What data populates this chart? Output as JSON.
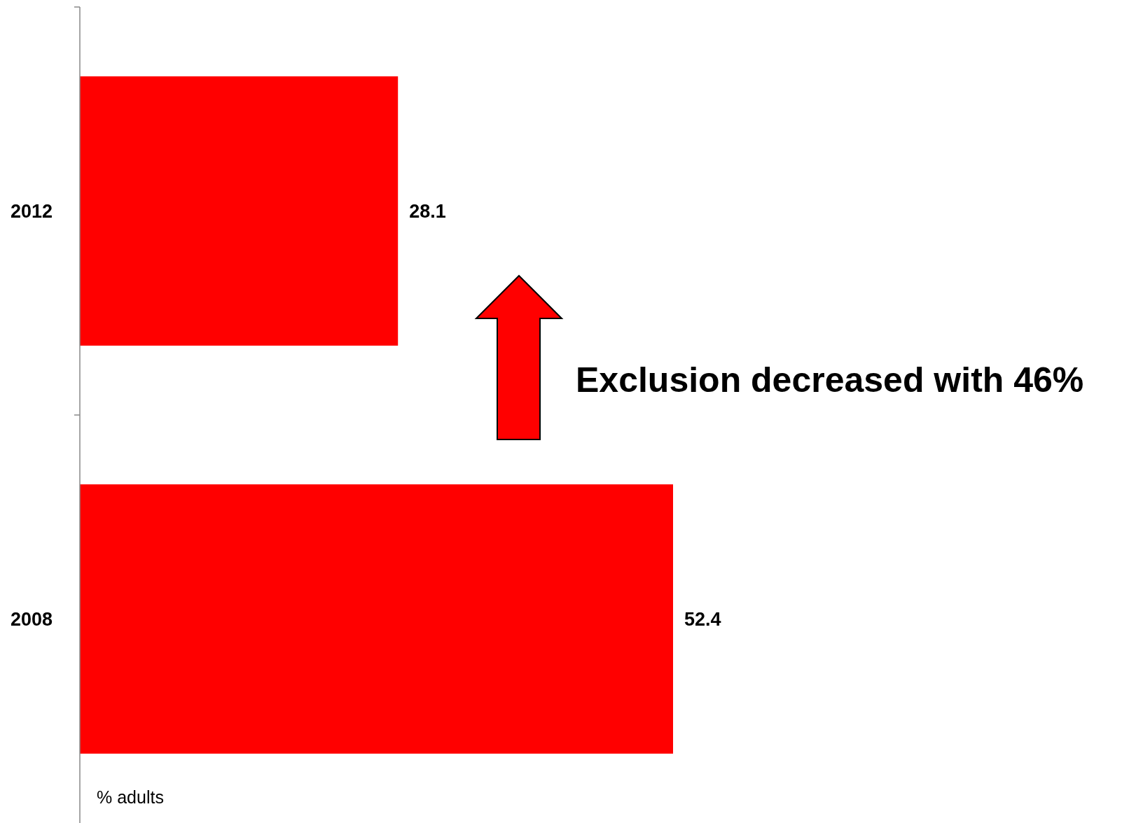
{
  "chart_data": {
    "type": "bar",
    "orientation": "horizontal",
    "categories": [
      "2012",
      "2008"
    ],
    "values": [
      28.1,
      52.4
    ],
    "color": "#ff0000",
    "data_labels": true,
    "xlabel": "% adults",
    "annotations": [
      "Exclusion decreased with 46%"
    ]
  }
}
